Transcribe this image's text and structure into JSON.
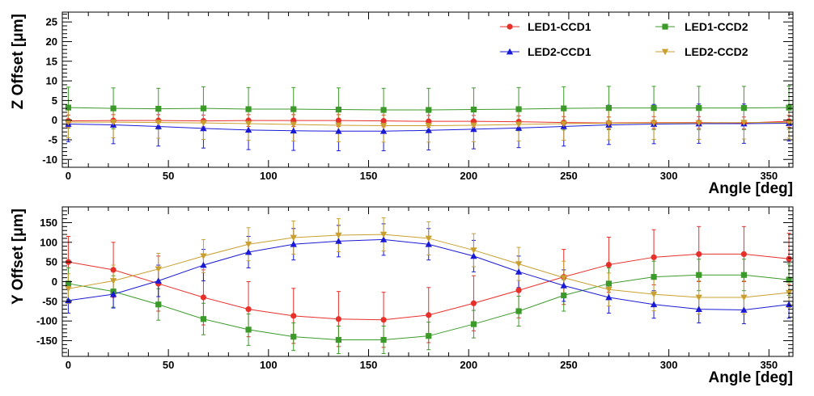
{
  "chart_data": [
    {
      "type": "scatter",
      "panel": "top",
      "xlabel": "Angle [deg]",
      "ylabel": "Z Offset [μm]",
      "xlim": [
        -3,
        362
      ],
      "ylim": [
        -12,
        27.5
      ],
      "x_ticks": [
        0,
        50,
        100,
        150,
        200,
        250,
        300,
        350
      ],
      "y_ticks": [
        -10,
        -5,
        0,
        5,
        10,
        15,
        20,
        25
      ],
      "x": [
        0,
        22.5,
        45,
        67.5,
        90,
        112.5,
        135,
        157.5,
        180,
        202.5,
        225,
        247.5,
        270,
        292.5,
        315,
        337.5,
        360
      ],
      "legend": {
        "placement": "top-right",
        "columns": 2
      },
      "series": [
        {
          "name": "LED1-CCD1",
          "color": "#e8302a",
          "marker": "circle",
          "values": [
            -0.2,
            -0.1,
            -0.1,
            -0.2,
            -0.1,
            -0.1,
            -0.1,
            -0.2,
            -0.3,
            -0.3,
            -0.4,
            -0.6,
            -0.7,
            -0.6,
            -0.6,
            -0.7,
            -0.3
          ],
          "errors": [
            1.5,
            1.5,
            1.5,
            1.5,
            1.5,
            1.5,
            1.5,
            1.5,
            1.5,
            1.5,
            1.5,
            1.5,
            1.5,
            1.5,
            1.5,
            1.5,
            1.5
          ]
        },
        {
          "name": "LED1-CCD2",
          "color": "#3c9a2a",
          "marker": "square",
          "values": [
            3.2,
            3.0,
            2.9,
            3.0,
            2.8,
            2.8,
            2.7,
            2.6,
            2.6,
            2.7,
            2.8,
            3.0,
            3.1,
            3.1,
            3.1,
            3.1,
            3.2
          ],
          "errors": [
            5.2,
            5.2,
            5.2,
            5.5,
            5.5,
            5.5,
            5.5,
            5.5,
            5.5,
            5.5,
            5.5,
            5.5,
            5.5,
            5.5,
            5.5,
            5.5,
            5.5
          ]
        },
        {
          "name": "LED2-CCD1",
          "color": "#1a1ad6",
          "marker": "triangle-up",
          "values": [
            -1.0,
            -1.2,
            -1.6,
            -2.1,
            -2.5,
            -2.7,
            -2.8,
            -2.8,
            -2.6,
            -2.3,
            -2.0,
            -1.6,
            -1.2,
            -1.0,
            -0.9,
            -0.9,
            -0.8
          ],
          "errors": [
            4.5,
            4.8,
            5.0,
            5.0,
            5.0,
            5.0,
            5.0,
            5.0,
            5.0,
            5.0,
            5.0,
            5.0,
            5.0,
            5.0,
            5.0,
            5.0,
            4.5
          ]
        },
        {
          "name": "LED2-CCD2",
          "color": "#c9a030",
          "marker": "triangle-down",
          "values": [
            -0.5,
            -0.5,
            -0.6,
            -0.7,
            -0.9,
            -1.1,
            -1.3,
            -1.4,
            -1.4,
            -1.3,
            -1.1,
            -0.9,
            -0.8,
            -0.7,
            -0.7,
            -0.6,
            -0.6
          ],
          "errors": [
            4.0,
            4.0,
            4.0,
            4.2,
            4.2,
            4.2,
            4.2,
            4.2,
            4.2,
            4.2,
            4.2,
            4.2,
            4.2,
            4.2,
            4.2,
            4.2,
            4.0
          ]
        }
      ]
    },
    {
      "type": "line",
      "panel": "bottom",
      "xlabel": "Angle [deg]",
      "ylabel": "Y Offset [μm]",
      "xlim": [
        -3,
        362
      ],
      "ylim": [
        -190,
        190
      ],
      "x_ticks": [
        0,
        50,
        100,
        150,
        200,
        250,
        300,
        350
      ],
      "y_ticks": [
        -150,
        -100,
        -50,
        0,
        50,
        100,
        150
      ],
      "x": [
        0,
        22.5,
        45,
        67.5,
        90,
        112.5,
        135,
        157.5,
        180,
        202.5,
        225,
        247.5,
        270,
        292.5,
        315,
        337.5,
        360
      ],
      "series": [
        {
          "name": "LED1-CCD1",
          "color": "#e8302a",
          "marker": "circle",
          "values": [
            50,
            30,
            -5,
            -40,
            -70,
            -87,
            -95,
            -97,
            -85,
            -55,
            -22,
            12,
            43,
            62,
            70,
            70,
            58
          ],
          "errors": [
            65,
            70,
            70,
            70,
            70,
            70,
            70,
            70,
            70,
            70,
            70,
            70,
            70,
            70,
            70,
            70,
            65
          ]
        },
        {
          "name": "LED1-CCD2",
          "color": "#3c9a2a",
          "marker": "square",
          "values": [
            -5,
            -25,
            -58,
            -95,
            -122,
            -140,
            -148,
            -148,
            -138,
            -108,
            -75,
            -35,
            -5,
            12,
            17,
            17,
            5
          ],
          "errors": [
            40,
            40,
            40,
            40,
            40,
            35,
            35,
            35,
            35,
            35,
            38,
            40,
            40,
            40,
            40,
            40,
            40
          ]
        },
        {
          "name": "LED2-CCD1",
          "color": "#1a1ad6",
          "marker": "triangle-up",
          "values": [
            -48,
            -32,
            2,
            42,
            75,
            95,
            103,
            107,
            95,
            65,
            25,
            -10,
            -40,
            -58,
            -70,
            -72,
            -58
          ],
          "errors": [
            32,
            35,
            40,
            40,
            40,
            40,
            40,
            40,
            40,
            40,
            40,
            40,
            40,
            35,
            35,
            35,
            35
          ]
        },
        {
          "name": "LED2-CCD2",
          "color": "#c9a030",
          "marker": "triangle-down",
          "values": [
            -18,
            2,
            32,
            65,
            95,
            112,
            118,
            120,
            110,
            80,
            45,
            10,
            -20,
            -32,
            -40,
            -40,
            -28
          ],
          "errors": [
            38,
            40,
            40,
            42,
            42,
            42,
            42,
            42,
            42,
            42,
            42,
            42,
            42,
            42,
            42,
            42,
            38
          ]
        }
      ]
    }
  ]
}
